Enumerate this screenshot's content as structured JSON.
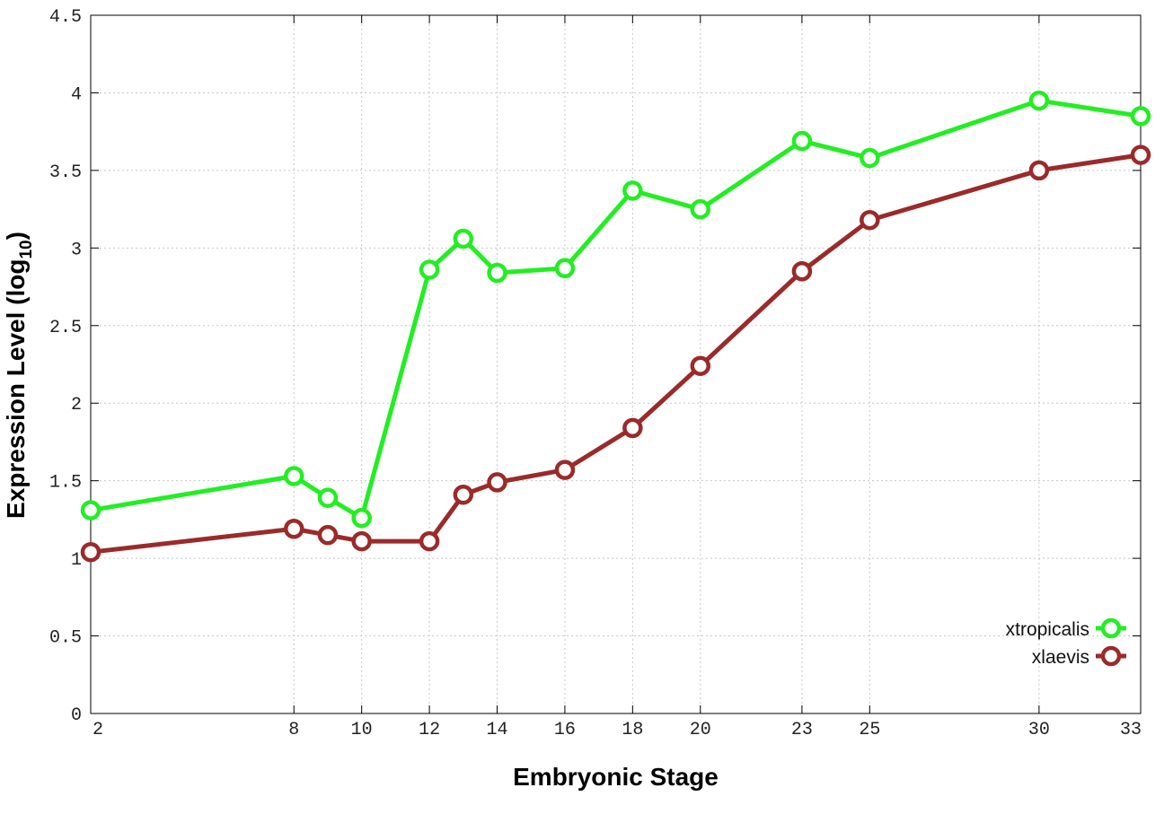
{
  "chart_data": {
    "type": "line",
    "title": "",
    "xlabel": "Embryonic Stage",
    "ylabel": "Expression Level (log",
    "ylabel_sub": "10",
    "ylabel_close": ")",
    "xlim": [
      2,
      33
    ],
    "ylim": [
      0,
      4.5
    ],
    "grid": true,
    "legend_position": "bottom-right",
    "x_ticks": [
      2,
      8,
      10,
      12,
      14,
      16,
      18,
      20,
      23,
      25,
      30,
      33
    ],
    "x_tick_labels": [
      "2",
      "8",
      "10",
      "12",
      "14",
      "16",
      "18",
      "20",
      "23",
      "25",
      "30",
      "33"
    ],
    "y_ticks": [
      0,
      0.5,
      1,
      1.5,
      2,
      2.5,
      3,
      3.5,
      4,
      4.5
    ],
    "y_tick_labels": [
      "0",
      "0.5",
      "1",
      "1.5",
      "2",
      "2.5",
      "3",
      "3.5",
      "4",
      "4.5"
    ],
    "x": [
      2,
      8,
      9,
      10,
      12,
      13,
      14,
      16,
      18,
      20,
      23,
      25,
      30,
      33
    ],
    "series": [
      {
        "name": "xtropicalis",
        "color": "#22ee22",
        "values": [
          1.31,
          1.53,
          1.39,
          1.26,
          2.86,
          3.06,
          2.84,
          2.87,
          3.37,
          3.25,
          3.69,
          3.58,
          3.95,
          3.85
        ]
      },
      {
        "name": "xlaevis",
        "color": "#9b2a2a",
        "values": [
          1.04,
          1.19,
          1.15,
          1.11,
          1.11,
          1.41,
          1.49,
          1.57,
          1.84,
          2.24,
          2.85,
          3.18,
          3.5,
          3.6
        ]
      }
    ]
  }
}
